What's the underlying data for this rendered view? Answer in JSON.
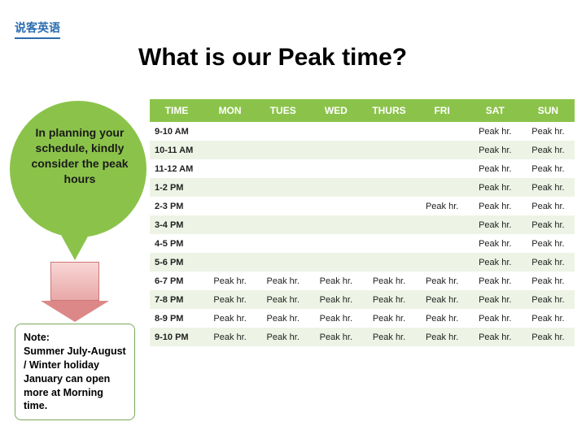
{
  "logo": "说客英语",
  "title": "What is our Peak time?",
  "bubble": "In planning your schedule, kindly consider the peak hours",
  "note": "Note:\nSummer July-August / Winter holiday January can open more at Morning time.",
  "colors": {
    "accent": "#8bc34a",
    "row_alt": "#eef4e5",
    "logo": "#2b6cb0"
  },
  "table": {
    "headers": [
      "TIME",
      "MON",
      "TUES",
      "WED",
      "THURS",
      "FRI",
      "SAT",
      "SUN"
    ],
    "rows": [
      {
        "time": "9-10 AM",
        "cells": [
          "",
          "",
          "",
          "",
          "",
          "Peak hr.",
          "Peak hr."
        ]
      },
      {
        "time": "10-11 AM",
        "cells": [
          "",
          "",
          "",
          "",
          "",
          "Peak hr.",
          "Peak hr."
        ]
      },
      {
        "time": "11-12 AM",
        "cells": [
          "",
          "",
          "",
          "",
          "",
          "Peak hr.",
          "Peak hr."
        ]
      },
      {
        "time": "1-2 PM",
        "cells": [
          "",
          "",
          "",
          "",
          "",
          "Peak hr.",
          "Peak hr."
        ]
      },
      {
        "time": "2-3 PM",
        "cells": [
          "",
          "",
          "",
          "",
          "Peak hr.",
          "Peak hr.",
          "Peak hr."
        ]
      },
      {
        "time": "3-4 PM",
        "cells": [
          "",
          "",
          "",
          "",
          "",
          "Peak hr.",
          "Peak hr."
        ]
      },
      {
        "time": "4-5 PM",
        "cells": [
          "",
          "",
          "",
          "",
          "",
          "Peak hr.",
          "Peak hr."
        ]
      },
      {
        "time": "5-6 PM",
        "cells": [
          "",
          "",
          "",
          "",
          "",
          "Peak hr.",
          "Peak hr."
        ]
      },
      {
        "time": "6-7 PM",
        "cells": [
          "Peak hr.",
          "Peak hr.",
          "Peak hr.",
          "Peak hr.",
          "Peak hr.",
          "Peak hr.",
          "Peak hr."
        ]
      },
      {
        "time": "7-8 PM",
        "cells": [
          "Peak hr.",
          "Peak hr.",
          "Peak hr.",
          "Peak hr.",
          "Peak hr.",
          "Peak hr.",
          "Peak hr."
        ]
      },
      {
        "time": "8-9 PM",
        "cells": [
          "Peak hr.",
          "Peak hr.",
          "Peak hr.",
          "Peak hr.",
          "Peak hr.",
          "Peak hr.",
          "Peak hr."
        ]
      },
      {
        "time": "9-10 PM",
        "cells": [
          "Peak hr.",
          "Peak hr.",
          "Peak hr.",
          "Peak hr.",
          "Peak hr.",
          "Peak hr.",
          "Peak hr."
        ]
      }
    ]
  }
}
